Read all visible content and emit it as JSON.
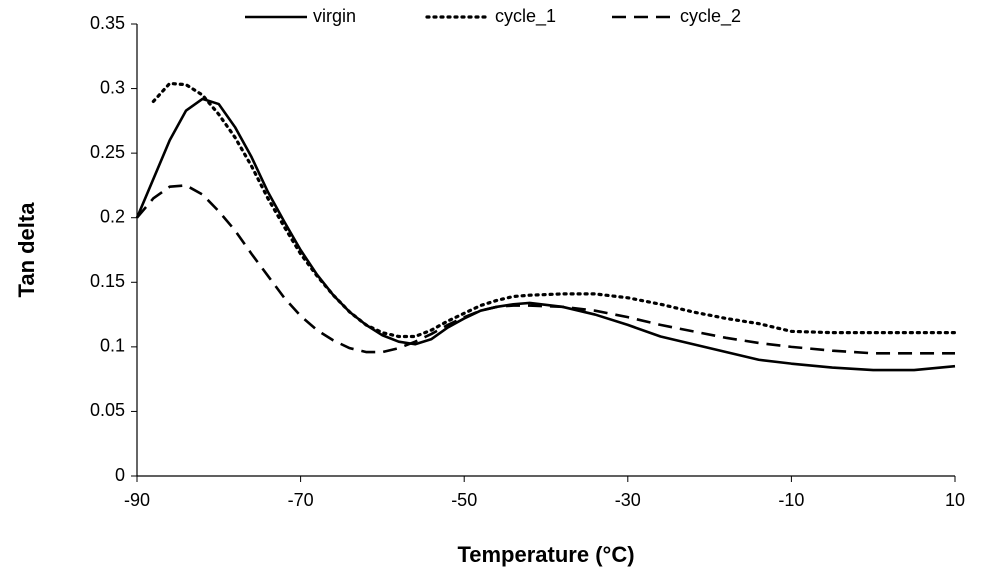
{
  "chart_data": {
    "type": "line",
    "xlabel": "Temperature (°C)",
    "ylabel": "Tan delta",
    "x": [
      -90,
      -88,
      -86,
      -84,
      -82,
      -80,
      -78,
      -76,
      -74,
      -72,
      -70,
      -68,
      -66,
      -64,
      -62,
      -60,
      -58,
      -56,
      -54,
      -52,
      -50,
      -48,
      -46,
      -44,
      -42,
      -38,
      -34,
      -30,
      -26,
      -22,
      -18,
      -14,
      -10,
      -5,
      0,
      5,
      10
    ],
    "series": [
      {
        "name": "virgin",
        "color": "#000000",
        "style": "solid",
        "values": [
          0.2,
          0.23,
          0.26,
          0.283,
          0.292,
          0.288,
          0.27,
          0.247,
          0.22,
          0.197,
          0.175,
          0.156,
          0.14,
          0.127,
          0.117,
          0.109,
          0.104,
          0.102,
          0.106,
          0.115,
          0.122,
          0.128,
          0.131,
          0.133,
          0.134,
          0.131,
          0.125,
          0.117,
          0.108,
          0.102,
          0.096,
          0.09,
          0.087,
          0.084,
          0.082,
          0.082,
          0.085
        ]
      },
      {
        "name": "cycle_1",
        "color": "#000000",
        "style": "dotted",
        "values": [
          null,
          0.29,
          0.304,
          0.303,
          0.295,
          0.28,
          0.262,
          0.24,
          0.215,
          0.193,
          0.172,
          0.155,
          0.14,
          0.127,
          0.117,
          0.111,
          0.108,
          0.108,
          0.113,
          0.12,
          0.126,
          0.132,
          0.136,
          0.139,
          0.14,
          0.141,
          0.141,
          0.138,
          0.133,
          0.127,
          0.122,
          0.118,
          0.112,
          0.111,
          0.111,
          0.111,
          0.111
        ]
      },
      {
        "name": "cycle_2",
        "color": "#000000",
        "style": "dashed",
        "values": [
          0.2,
          0.215,
          0.224,
          0.225,
          0.218,
          0.205,
          0.19,
          0.172,
          0.155,
          0.138,
          0.124,
          0.113,
          0.105,
          0.099,
          0.096,
          0.096,
          0.099,
          0.104,
          0.11,
          0.117,
          0.123,
          0.128,
          0.131,
          0.132,
          0.132,
          0.131,
          0.128,
          0.123,
          0.117,
          0.112,
          0.107,
          0.103,
          0.1,
          0.097,
          0.095,
          0.095,
          0.095
        ]
      }
    ],
    "xlim": [
      -90,
      10
    ],
    "xticks": [
      -90,
      -70,
      -50,
      -30,
      -10,
      10
    ],
    "ylim": [
      0,
      0.35
    ],
    "yticks": [
      0,
      0.05,
      0.1,
      0.15,
      0.2,
      0.25,
      0.3,
      0.35
    ],
    "grid": false,
    "legend": "top"
  }
}
